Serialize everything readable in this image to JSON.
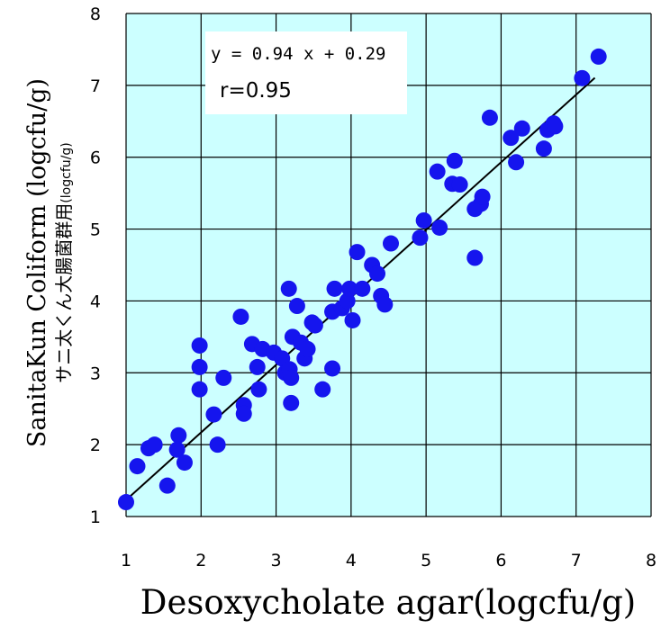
{
  "chart_data": {
    "type": "scatter",
    "xlabel": "Desoxycholate agar(logcfu/g)",
    "ylabel": "SanitaKun Coliform (logcfu/g)",
    "ylabel_jp_main": "サニ太くん大腸菌群用",
    "ylabel_jp_unit": "(logcfu/g)",
    "xlim": [
      1,
      8
    ],
    "ylim": [
      1,
      8
    ],
    "xticks": [
      "1",
      "2",
      "3",
      "4",
      "5",
      "6",
      "7",
      "8"
    ],
    "yticks": [
      "1",
      "2",
      "3",
      "4",
      "5",
      "6",
      "7",
      "8"
    ],
    "grid": true,
    "annotations": {
      "equation": "y = 0.94 x + 0.29",
      "r": "r=0.95"
    },
    "colors": {
      "plot_bg": "#ccffff",
      "point": "#1515ee",
      "grid": "#000000",
      "fit_line": "#000000"
    },
    "fit": {
      "slope": 0.94,
      "intercept": 0.29,
      "x_range": [
        1.0,
        7.25
      ]
    },
    "points": [
      [
        1.0,
        1.2
      ],
      [
        1.15,
        1.7
      ],
      [
        1.3,
        1.95
      ],
      [
        1.38,
        2.0
      ],
      [
        1.55,
        1.43
      ],
      [
        1.7,
        2.13
      ],
      [
        1.68,
        1.93
      ],
      [
        1.78,
        1.75
      ],
      [
        1.98,
        3.38
      ],
      [
        1.98,
        3.08
      ],
      [
        1.98,
        2.77
      ],
      [
        2.17,
        2.42
      ],
      [
        2.22,
        2.0
      ],
      [
        2.3,
        2.93
      ],
      [
        2.53,
        3.78
      ],
      [
        2.57,
        2.55
      ],
      [
        2.57,
        2.43
      ],
      [
        2.68,
        3.4
      ],
      [
        2.75,
        3.08
      ],
      [
        2.77,
        2.77
      ],
      [
        2.82,
        3.33
      ],
      [
        2.97,
        3.28
      ],
      [
        3.08,
        3.2
      ],
      [
        3.12,
        3.0
      ],
      [
        3.17,
        4.17
      ],
      [
        3.18,
        3.05
      ],
      [
        3.2,
        2.93
      ],
      [
        3.2,
        2.58
      ],
      [
        3.22,
        3.5
      ],
      [
        3.28,
        3.93
      ],
      [
        3.33,
        3.42
      ],
      [
        3.38,
        3.2
      ],
      [
        3.42,
        3.33
      ],
      [
        3.48,
        3.7
      ],
      [
        3.52,
        3.66
      ],
      [
        3.62,
        2.77
      ],
      [
        3.75,
        3.85
      ],
      [
        3.75,
        3.06
      ],
      [
        3.78,
        4.17
      ],
      [
        3.88,
        3.9
      ],
      [
        3.95,
        4.0
      ],
      [
        3.98,
        4.17
      ],
      [
        4.02,
        3.73
      ],
      [
        4.08,
        4.68
      ],
      [
        4.15,
        4.17
      ],
      [
        4.28,
        4.5
      ],
      [
        4.35,
        4.38
      ],
      [
        4.4,
        4.07
      ],
      [
        4.45,
        3.95
      ],
      [
        4.53,
        4.8
      ],
      [
        4.92,
        4.88
      ],
      [
        4.97,
        5.12
      ],
      [
        5.15,
        5.8
      ],
      [
        5.18,
        5.02
      ],
      [
        5.35,
        5.63
      ],
      [
        5.38,
        5.95
      ],
      [
        5.45,
        5.62
      ],
      [
        5.65,
        5.28
      ],
      [
        5.65,
        4.6
      ],
      [
        5.73,
        5.35
      ],
      [
        5.75,
        5.45
      ],
      [
        5.85,
        6.55
      ],
      [
        6.13,
        6.27
      ],
      [
        6.2,
        5.93
      ],
      [
        6.28,
        6.4
      ],
      [
        6.57,
        6.12
      ],
      [
        6.62,
        6.38
      ],
      [
        6.7,
        6.47
      ],
      [
        6.72,
        6.43
      ],
      [
        7.08,
        7.1
      ],
      [
        7.3,
        7.4
      ]
    ]
  }
}
